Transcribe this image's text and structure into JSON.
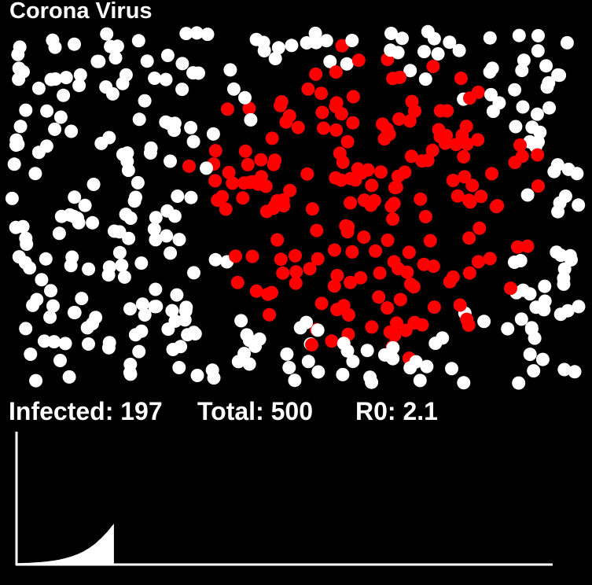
{
  "title": "Corona Virus",
  "stats": {
    "infected_label": "Infected:",
    "infected_value": "197",
    "total_label": "Total:",
    "total_value": "500",
    "r0_label": "R0:",
    "r0_value": "2.1"
  },
  "colors": {
    "background": "#000000",
    "healthy": "#ffffff",
    "infected": "#ff0000",
    "axis": "#ffffff"
  },
  "simulation": {
    "population": 500,
    "infected": 197
  },
  "chart_data": {
    "type": "area",
    "title": "",
    "xlabel": "",
    "ylabel": "",
    "x": [
      0,
      1,
      2,
      3,
      4,
      5,
      6,
      7,
      8,
      9,
      10,
      11,
      12,
      13,
      14,
      15,
      16
    ],
    "series": [
      {
        "values": [
          1,
          2,
          3,
          5,
          7,
          10,
          14,
          19,
          26,
          35,
          46,
          60,
          78,
          100,
          128,
          160,
          197
        ]
      }
    ],
    "xlim": [
      0,
      400
    ],
    "ylim": [
      0,
      500
    ],
    "grid": false
  }
}
